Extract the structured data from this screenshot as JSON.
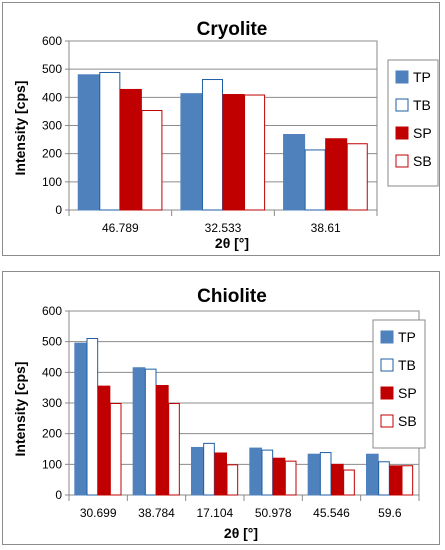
{
  "colors": {
    "TP": "#4f81bd",
    "TB": "#1f5fa6",
    "SP": "#c00000",
    "SB": "#c00000"
  },
  "chart_data": [
    {
      "type": "bar",
      "title": "Cryolite",
      "xlabel": "2θ [°]",
      "ylabel": "Intensity [cps]",
      "ylim": [
        0,
        600
      ],
      "yticks": [
        0,
        100,
        200,
        300,
        400,
        500,
        600
      ],
      "grid": true,
      "legend": "right",
      "categories": [
        "46.789",
        "32.533",
        "38.61"
      ],
      "series": [
        {
          "name": "TP",
          "style": "filled",
          "values": [
            480,
            413,
            268
          ]
        },
        {
          "name": "TB",
          "style": "outline",
          "values": [
            490,
            465,
            215
          ]
        },
        {
          "name": "SP",
          "style": "filled",
          "values": [
            428,
            410,
            253
          ]
        },
        {
          "name": "SB",
          "style": "outline",
          "values": [
            355,
            410,
            237
          ]
        }
      ]
    },
    {
      "type": "bar",
      "title": "Chiolite",
      "xlabel": "2θ [°]",
      "ylabel": "Intensity [cps]",
      "ylim": [
        0,
        600
      ],
      "yticks": [
        0,
        100,
        200,
        300,
        400,
        500,
        600
      ],
      "grid": true,
      "legend": "right",
      "categories": [
        "30.699",
        "38.784",
        "17.104",
        "50.978",
        "45.546",
        "59.6"
      ],
      "series": [
        {
          "name": "TP",
          "style": "filled",
          "values": [
            495,
            415,
            155,
            153,
            133,
            133
          ]
        },
        {
          "name": "TB",
          "style": "outline",
          "values": [
            512,
            412,
            170,
            148,
            140,
            110
          ]
        },
        {
          "name": "SP",
          "style": "filled",
          "values": [
            355,
            357,
            137,
            120,
            100,
            95
          ]
        },
        {
          "name": "SB",
          "style": "outline",
          "values": [
            300,
            300,
            100,
            112,
            83,
            97
          ]
        }
      ]
    }
  ]
}
